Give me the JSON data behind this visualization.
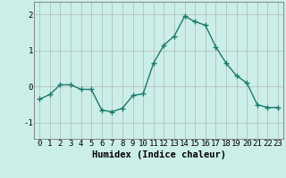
{
  "x": [
    0,
    1,
    2,
    3,
    4,
    5,
    6,
    7,
    8,
    9,
    10,
    11,
    12,
    13,
    14,
    15,
    16,
    17,
    18,
    19,
    20,
    21,
    22,
    23
  ],
  "y": [
    -0.35,
    -0.22,
    0.05,
    0.05,
    -0.08,
    -0.08,
    -0.65,
    -0.7,
    -0.6,
    -0.25,
    -0.2,
    0.65,
    1.15,
    1.4,
    1.95,
    1.8,
    1.7,
    1.1,
    0.65,
    0.3,
    0.1,
    -0.5,
    -0.58,
    -0.58
  ],
  "line_color": "#1a7a6e",
  "marker": "+",
  "marker_size": 4,
  "bg_color": "#cceee8",
  "grid_color": "#aaaaaa",
  "xlabel": "Humidex (Indice chaleur)",
  "xlim": [
    -0.5,
    23.5
  ],
  "ylim": [
    -1.45,
    2.35
  ],
  "yticks": [
    -1,
    0,
    1,
    2
  ],
  "xticks": [
    0,
    1,
    2,
    3,
    4,
    5,
    6,
    7,
    8,
    9,
    10,
    11,
    12,
    13,
    14,
    15,
    16,
    17,
    18,
    19,
    20,
    21,
    22,
    23
  ],
  "tick_label_fontsize": 6.5,
  "xlabel_fontsize": 7.5,
  "linewidth": 1.0
}
